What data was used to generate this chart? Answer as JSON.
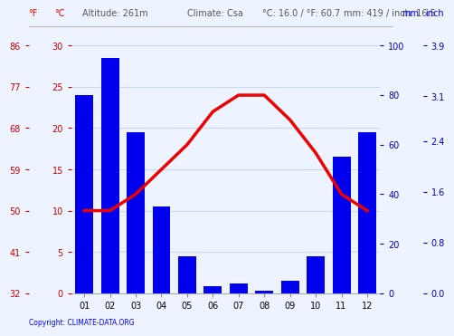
{
  "months": [
    "01",
    "02",
    "03",
    "04",
    "05",
    "06",
    "07",
    "08",
    "09",
    "10",
    "11",
    "12"
  ],
  "precip_mm": [
    80,
    95,
    65,
    35,
    15,
    3,
    4,
    1,
    5,
    15,
    55,
    65
  ],
  "temp_c": [
    10,
    10,
    12,
    15,
    18,
    22,
    24,
    24,
    21,
    17,
    12,
    10
  ],
  "bar_color": "#0000ee",
  "line_color": "#ee0000",
  "background_color": "#eef4ff",
  "grid_color": "#c8d8ee",
  "left_c_color": "#cc0000",
  "right_mm_color": "#0000cc",
  "temp_c_min": 0,
  "temp_c_max": 30,
  "temp_f_min": 32,
  "temp_f_max": 86,
  "precip_mm_min": 0,
  "precip_mm_max": 100,
  "precip_inch_max": 3.9,
  "copyright_text": "Copyright: CLIMATE-DATA.ORG"
}
